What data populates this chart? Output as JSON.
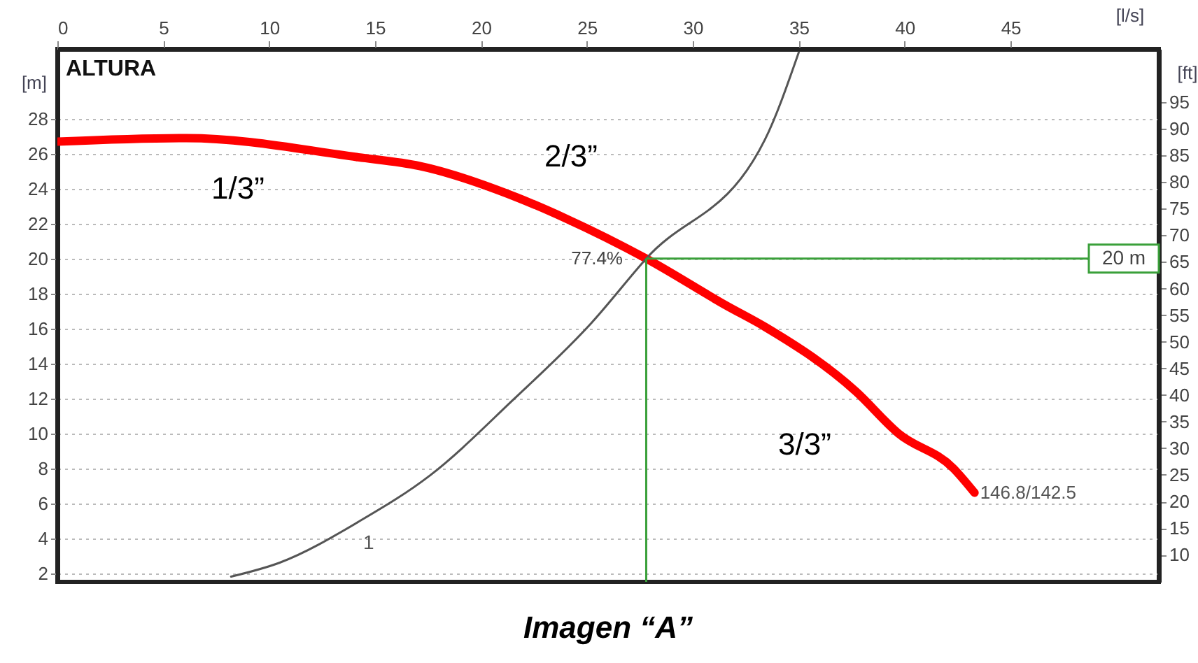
{
  "chart_data": {
    "type": "line",
    "title": "Imagen “A”",
    "xlabel": "[l/s]",
    "ylabel": "[m]",
    "y2label": "[ft]",
    "xlim": [
      0,
      52
    ],
    "xticks": [
      0,
      5,
      10,
      15,
      20,
      25,
      30,
      35,
      40,
      45
    ],
    "ylim": [
      1.5,
      32
    ],
    "yticks": [
      2,
      4,
      6,
      8,
      10,
      12,
      14,
      16,
      18,
      20,
      22,
      24,
      26,
      28
    ],
    "y2lim": [
      4.9,
      105
    ],
    "y2ticks": [
      10,
      15,
      20,
      25,
      30,
      35,
      40,
      45,
      50,
      55,
      60,
      65,
      70,
      75,
      80,
      85,
      90,
      95
    ],
    "grid": "y",
    "marker": "none",
    "line_style": "solid",
    "series": [
      {
        "name": "146.8/142.5",
        "color": "#ff0000",
        "x": [
          0,
          6.1,
          14.2,
          17.1,
          21.7,
          24.0,
          27.8,
          31.6,
          33.4,
          37.7,
          39.7,
          42.3,
          43.3
        ],
        "values": [
          26.7,
          26.9,
          25.8,
          25.3,
          23.5,
          22.3,
          20.0,
          17.3,
          16.1,
          12.4,
          10.0,
          8.0,
          6.6
        ]
      },
      {
        "name": "1",
        "color": "#555555",
        "x": [
          8.2,
          10.5,
          14.3,
          17.6,
          21.5,
          25.2,
          27.8,
          33.4,
          35.0
        ],
        "values": [
          1.8,
          2.6,
          5.0,
          7.6,
          11.9,
          16.3,
          20.0,
          26.8,
          31.8
        ]
      }
    ],
    "ref_lines": [
      {
        "axis": "y",
        "value": 20,
        "label": "20 m",
        "color": "#3aa03a"
      },
      {
        "axis": "x",
        "value": 27.8,
        "color": "#3aa03a"
      }
    ],
    "annotations": [
      "ALTURA",
      "1/3”",
      "2/3”",
      "3/3”",
      "77.4%"
    ]
  }
}
